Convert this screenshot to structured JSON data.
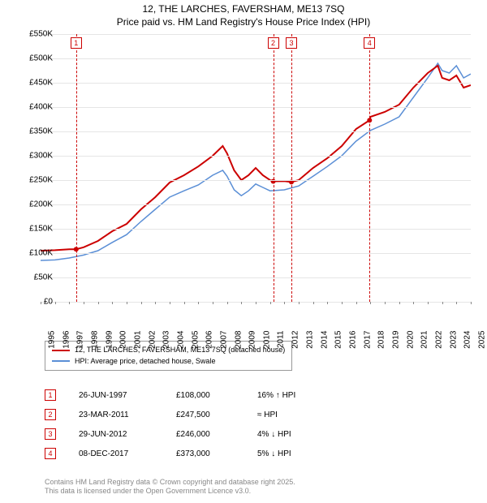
{
  "title": {
    "line1": "12, THE LARCHES, FAVERSHAM, ME13 7SQ",
    "line2": "Price paid vs. HM Land Registry's House Price Index (HPI)"
  },
  "chart": {
    "type": "line",
    "background_color": "#ffffff",
    "grid_color": "#e5e5e5",
    "ylim": [
      0,
      550000
    ],
    "ytick_step": 50000,
    "y_labels": [
      "£0",
      "£50K",
      "£100K",
      "£150K",
      "£200K",
      "£250K",
      "£300K",
      "£350K",
      "£400K",
      "£450K",
      "£500K",
      "£550K"
    ],
    "xlim": [
      1995,
      2025
    ],
    "x_labels": [
      "1995",
      "1996",
      "1997",
      "1998",
      "1999",
      "2000",
      "2001",
      "2002",
      "2003",
      "2004",
      "2005",
      "2006",
      "2007",
      "2008",
      "2009",
      "2010",
      "2011",
      "2012",
      "2013",
      "2014",
      "2015",
      "2016",
      "2017",
      "2018",
      "2019",
      "2020",
      "2021",
      "2022",
      "2023",
      "2024",
      "2025"
    ],
    "label_fontsize": 10,
    "ref_color": "#cc0000",
    "references": [
      {
        "n": "1",
        "year": 1997.48
      },
      {
        "n": "2",
        "year": 2011.22
      },
      {
        "n": "3",
        "year": 2012.49
      },
      {
        "n": "4",
        "year": 2017.94
      }
    ],
    "series": [
      {
        "name": "12, THE LARCHES, FAVERSHAM, ME13 7SQ (detached house)",
        "color": "#cc0000",
        "width": 2,
        "points": [
          [
            1995,
            105000
          ],
          [
            1996,
            106000
          ],
          [
            1997,
            108000
          ],
          [
            1997.48,
            108000
          ],
          [
            1998,
            112000
          ],
          [
            1999,
            125000
          ],
          [
            2000,
            145000
          ],
          [
            2001,
            160000
          ],
          [
            2002,
            190000
          ],
          [
            2003,
            215000
          ],
          [
            2004,
            245000
          ],
          [
            2005,
            260000
          ],
          [
            2006,
            278000
          ],
          [
            2007,
            300000
          ],
          [
            2007.7,
            320000
          ],
          [
            2008,
            305000
          ],
          [
            2008.5,
            270000
          ],
          [
            2009,
            250000
          ],
          [
            2009.5,
            260000
          ],
          [
            2010,
            275000
          ],
          [
            2010.5,
            260000
          ],
          [
            2011,
            250000
          ],
          [
            2011.22,
            247500
          ],
          [
            2012,
            248000
          ],
          [
            2012.49,
            246000
          ],
          [
            2013,
            250000
          ],
          [
            2014,
            275000
          ],
          [
            2015,
            295000
          ],
          [
            2016,
            320000
          ],
          [
            2017,
            355000
          ],
          [
            2017.94,
            373000
          ],
          [
            2018,
            380000
          ],
          [
            2019,
            390000
          ],
          [
            2020,
            405000
          ],
          [
            2021,
            440000
          ],
          [
            2022,
            470000
          ],
          [
            2022.7,
            485000
          ],
          [
            2023,
            460000
          ],
          [
            2023.5,
            455000
          ],
          [
            2024,
            465000
          ],
          [
            2024.5,
            440000
          ],
          [
            2025,
            445000
          ]
        ]
      },
      {
        "name": "HPI: Average price, detached house, Swale",
        "color": "#5b8fd6",
        "width": 1.5,
        "points": [
          [
            1995,
            85000
          ],
          [
            1996,
            86000
          ],
          [
            1997,
            90000
          ],
          [
            1998,
            96000
          ],
          [
            1999,
            105000
          ],
          [
            2000,
            122000
          ],
          [
            2001,
            138000
          ],
          [
            2002,
            165000
          ],
          [
            2003,
            190000
          ],
          [
            2004,
            215000
          ],
          [
            2005,
            228000
          ],
          [
            2006,
            240000
          ],
          [
            2007,
            260000
          ],
          [
            2007.7,
            270000
          ],
          [
            2008,
            258000
          ],
          [
            2008.5,
            230000
          ],
          [
            2009,
            218000
          ],
          [
            2009.5,
            228000
          ],
          [
            2010,
            242000
          ],
          [
            2010.5,
            235000
          ],
          [
            2011,
            228000
          ],
          [
            2012,
            230000
          ],
          [
            2013,
            238000
          ],
          [
            2014,
            258000
          ],
          [
            2015,
            278000
          ],
          [
            2016,
            300000
          ],
          [
            2017,
            330000
          ],
          [
            2018,
            352000
          ],
          [
            2019,
            365000
          ],
          [
            2020,
            380000
          ],
          [
            2021,
            420000
          ],
          [
            2022,
            460000
          ],
          [
            2022.7,
            490000
          ],
          [
            2023,
            475000
          ],
          [
            2023.5,
            470000
          ],
          [
            2024,
            485000
          ],
          [
            2024.5,
            460000
          ],
          [
            2025,
            468000
          ]
        ]
      }
    ]
  },
  "legend": {
    "items": [
      {
        "color": "#cc0000",
        "label": "12, THE LARCHES, FAVERSHAM, ME13 7SQ (detached house)"
      },
      {
        "color": "#5b8fd6",
        "label": "HPI: Average price, detached house, Swale"
      }
    ]
  },
  "sales": [
    {
      "n": "1",
      "date": "26-JUN-1997",
      "price": "£108,000",
      "rel": "16% ↑ HPI"
    },
    {
      "n": "2",
      "date": "23-MAR-2011",
      "price": "£247,500",
      "rel": "≈ HPI"
    },
    {
      "n": "3",
      "date": "29-JUN-2012",
      "price": "£246,000",
      "rel": "4% ↓ HPI"
    },
    {
      "n": "4",
      "date": "08-DEC-2017",
      "price": "£373,000",
      "rel": "5% ↓ HPI"
    }
  ],
  "footer": {
    "line1": "Contains HM Land Registry data © Crown copyright and database right 2025.",
    "line2": "This data is licensed under the Open Government Licence v3.0."
  }
}
